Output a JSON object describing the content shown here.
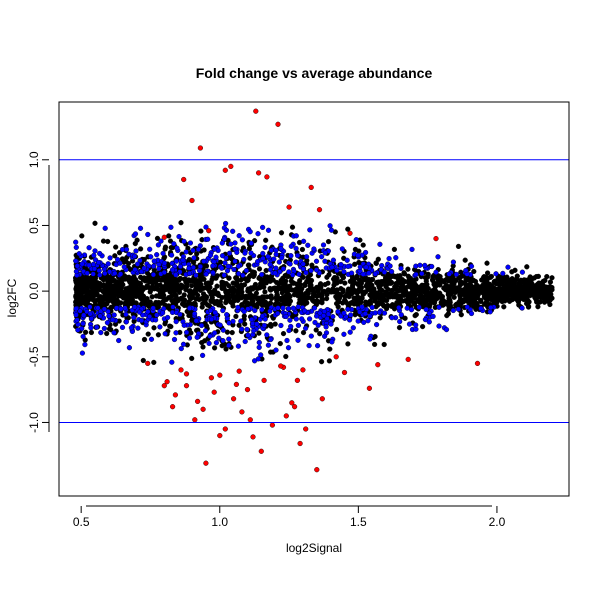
{
  "chart_data": {
    "type": "scatter",
    "title": "Fold change vs average abundance",
    "xlabel": "log2Signal",
    "ylabel": "log2FC",
    "xlim": [
      0.42,
      2.26
    ],
    "ylim": [
      -1.56,
      1.44
    ],
    "x_ticks": [
      "0.5",
      "1.0",
      "1.5",
      "2.0"
    ],
    "y_ticks": [
      "-1.0",
      "-0.5",
      "0.0",
      "0.5",
      "1.0"
    ],
    "reference_lines": [
      1.0,
      -1.0
    ],
    "grid": false,
    "colors": {
      "not_significant": "#000000",
      "significant_small_fc": "#0000ff",
      "significant_large_fc": "#ff0000",
      "reference_line": "#0000ff"
    },
    "series": [
      {
        "color": "#ff0000",
        "x": [
          1.13,
          1.21,
          0.93,
          1.02,
          1.04,
          1.14,
          1.17,
          1.33,
          1.36,
          0.87,
          0.9,
          1.25,
          0.8,
          0.96,
          1.47,
          1.78,
          0.74,
          1.07,
          0.88,
          0.92,
          1.08,
          1.02,
          1.29,
          1.15,
          0.8,
          0.84,
          0.91,
          1.0,
          1.27,
          1.31,
          1.12,
          1.45,
          1.42,
          1.93,
          1.68,
          1.57,
          1.54,
          0.86,
          0.97,
          1.23,
          0.83,
          1.11,
          1.19,
          1.28,
          0.95,
          1.05,
          1.35,
          0.98,
          1.16,
          1.24,
          0.88,
          1.1,
          1.3,
          1.06,
          1.37,
          1.22,
          0.94,
          1.26,
          0.81,
          1.0
        ],
        "y": [
          1.37,
          1.27,
          1.09,
          0.92,
          0.95,
          0.9,
          0.87,
          0.79,
          0.62,
          0.85,
          0.69,
          0.64,
          0.41,
          0.46,
          0.44,
          0.4,
          -0.55,
          -0.61,
          -0.72,
          -0.84,
          -0.92,
          -1.05,
          -1.16,
          -1.22,
          -0.72,
          -0.79,
          -0.98,
          -1.1,
          -0.88,
          -1.05,
          -1.11,
          -0.62,
          -0.5,
          -0.55,
          -0.52,
          -0.56,
          -0.74,
          -0.6,
          -0.66,
          -0.58,
          -0.88,
          -0.98,
          -1.02,
          -0.68,
          -1.31,
          -0.82,
          -1.36,
          -0.77,
          -0.68,
          -0.95,
          -0.63,
          -0.75,
          -0.6,
          -0.71,
          -0.82,
          -0.57,
          -0.9,
          -0.85,
          -0.69,
          -0.64
        ]
      }
    ]
  }
}
